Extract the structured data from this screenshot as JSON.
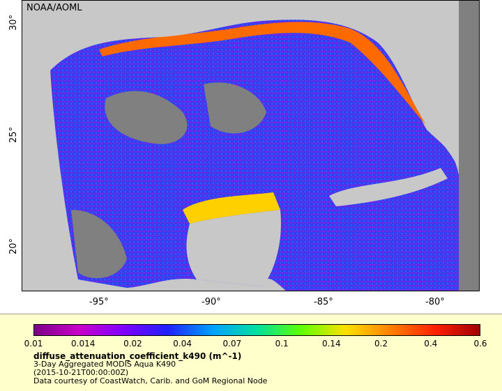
{
  "credit": "NOAA/AOML",
  "lat_labels": [
    "30°",
    "25°",
    "20°"
  ],
  "lon_labels": [
    "-95°",
    "-90°",
    "-85°",
    "-80°"
  ],
  "colorbar": {
    "ticks": [
      "0.01",
      "0.014",
      "0.02",
      "0.04",
      "0.07",
      "0.1",
      "0.14",
      "0.2",
      "0.4",
      "0.6"
    ],
    "colors": [
      "#7a0087",
      "#c800c8",
      "#8000ff",
      "#2020ff",
      "#00a0ff",
      "#00e0a0",
      "#60ff00",
      "#ffe000",
      "#ff8000",
      "#ff2000",
      "#a00000"
    ]
  },
  "legend": {
    "title": "diffuse_attenuation_coefficient_k490 (m^-1)",
    "line1": "3-Day Aggregated MODIS Aqua K490",
    "line2": "(2015-10-21T00:00:00Z)",
    "line3": "Data courtesy of CoastWatch, Carib. and GoM Regional Node"
  },
  "colors": {
    "land": "#c8c8c8",
    "no_data": "#808080",
    "legend_bg": "#ffffcc"
  }
}
